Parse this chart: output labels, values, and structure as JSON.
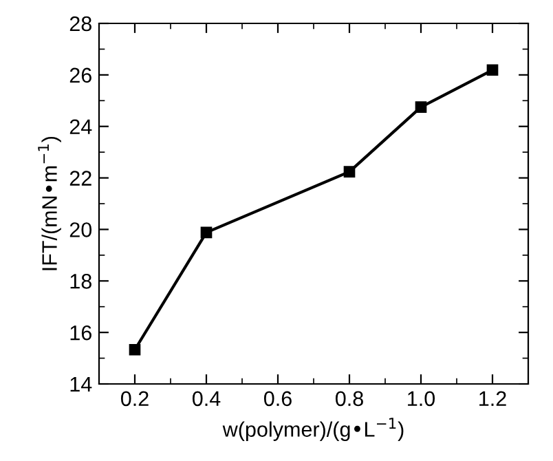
{
  "chart_data": {
    "type": "line",
    "xlabel": "w(polymer)/(g•L$^{−1}$)",
    "ylabel": "IFT/(mN•m$^{−1}$)",
    "x": [
      0.2,
      0.4,
      0.8,
      1.0,
      1.2
    ],
    "series": [
      {
        "color": "#000000",
        "values": [
          15.33,
          19.88,
          22.24,
          24.75,
          26.19
        ]
      }
    ],
    "marker": "square",
    "line_style": "solid",
    "grid": false,
    "legend": false,
    "xlim": [
      0.1,
      1.3
    ],
    "xticks": [
      {
        "value": 0.1,
        "label": null
      },
      {
        "value": 0.2,
        "label": "0.2"
      },
      {
        "value": 0.3,
        "label": null
      },
      {
        "value": 0.4,
        "label": "0.4"
      },
      {
        "value": 0.5,
        "label": null
      },
      {
        "value": 0.6,
        "label": "0.6"
      },
      {
        "value": 0.7,
        "label": null
      },
      {
        "value": 0.8,
        "label": "0.8"
      },
      {
        "value": 0.9,
        "label": null
      },
      {
        "value": 1.0,
        "label": "1.0"
      },
      {
        "value": 1.1,
        "label": null
      },
      {
        "value": 1.2,
        "label": "1.2"
      },
      {
        "value": 1.3,
        "label": null
      }
    ],
    "ylim": [
      14,
      28
    ],
    "yticks": [
      14,
      {
        "value": 15,
        "label": null
      },
      16,
      {
        "value": 17,
        "label": null
      },
      18,
      {
        "value": 19,
        "label": null
      },
      20,
      {
        "value": 21,
        "label": null
      },
      22,
      {
        "value": 23,
        "label": null
      },
      24,
      {
        "value": 25,
        "label": null
      },
      26,
      {
        "value": 27,
        "label": null
      },
      28
    ]
  }
}
